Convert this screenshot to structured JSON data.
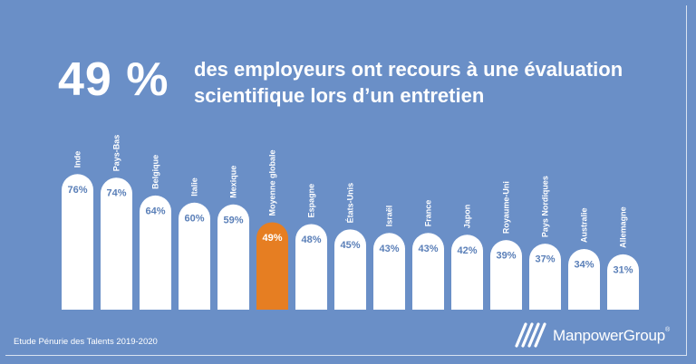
{
  "headline": {
    "stat": "49 %",
    "line1": "des employeurs ont recours à une évaluation",
    "line2": "scientifique lors d’un entretien"
  },
  "footer": {
    "source": "Etude Pénurie des Talents 2019-2020",
    "brand": "ManpowerGroup",
    "brand_mark": "®"
  },
  "colors": {
    "background": "#6a8fc7",
    "bar": "#ffffff",
    "highlight": "#e67e22",
    "label": "#5a7fb8"
  },
  "chart_data": {
    "type": "bar",
    "categories": [
      "Inde",
      "Pays-Bas",
      "Belgique",
      "Italie",
      "Mexique",
      "Moyenne globale",
      "Espagne",
      "États-Unis",
      "Israël",
      "France",
      "Japon",
      "Royaume-Uni",
      "Pays Nordiques",
      "Australie",
      "Allemagne"
    ],
    "values": [
      76,
      74,
      64,
      60,
      59,
      49,
      48,
      45,
      43,
      43,
      42,
      39,
      37,
      34,
      31
    ],
    "value_labels": [
      "76%",
      "74%",
      "64%",
      "60%",
      "59%",
      "49%",
      "48%",
      "45%",
      "43%",
      "43%",
      "42%",
      "39%",
      "37%",
      "34%",
      "31%"
    ],
    "highlight_category": "Moyenne globale",
    "title": "",
    "xlabel": "",
    "ylabel": "",
    "ylim": [
      0,
      80
    ],
    "grid": false,
    "legend": "none"
  }
}
